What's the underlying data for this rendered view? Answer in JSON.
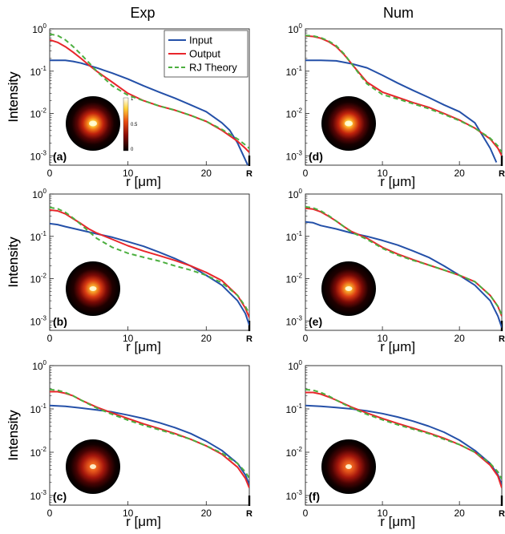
{
  "columns": [
    "Exp",
    "Num"
  ],
  "colors": {
    "Input": "#2450a8",
    "Output": "#e8262b",
    "RJ Theory": "#4caf3f"
  },
  "colorbar": {
    "ticks": [
      "1",
      "0.5",
      "0"
    ]
  },
  "chart_data": [
    {
      "type": "line",
      "label": "(a)",
      "column": "Exp",
      "xlabel": "r [μm]",
      "ylabel": "Intensity",
      "x_ticks": [
        "0",
        "10",
        "20",
        "R"
      ],
      "y_ticks": [
        "10^0",
        "10^-1",
        "10^-2",
        "10^-3"
      ],
      "xlim": [
        0,
        25.5
      ],
      "ylim": [
        0.0006,
        1
      ],
      "y_scale": "log",
      "legend": {
        "placement": "top-right",
        "entries": [
          "Input",
          "Output",
          "RJ Theory"
        ]
      },
      "inset": {
        "image": "near-field intensity profile",
        "colorbar": true
      },
      "series": [
        {
          "name": "Input",
          "style": "solid",
          "x": [
            0,
            2,
            3,
            4,
            6,
            8,
            10,
            12,
            14,
            16,
            18,
            20,
            22,
            23,
            24,
            25,
            25.5
          ],
          "y": [
            0.18,
            0.18,
            0.17,
            0.155,
            0.12,
            0.09,
            0.065,
            0.045,
            0.032,
            0.023,
            0.016,
            0.011,
            0.006,
            0.004,
            0.002,
            0.0008,
            0.0005
          ]
        },
        {
          "name": "Output",
          "style": "solid",
          "x": [
            0,
            1,
            2,
            3,
            4,
            5,
            6,
            8,
            10,
            12,
            14,
            16,
            18,
            20,
            22,
            24,
            25,
            25.5
          ],
          "y": [
            0.55,
            0.48,
            0.38,
            0.28,
            0.2,
            0.14,
            0.1,
            0.055,
            0.03,
            0.02,
            0.015,
            0.012,
            0.009,
            0.0065,
            0.004,
            0.0022,
            0.0015,
            0.0012
          ]
        },
        {
          "name": "RJ Theory",
          "style": "dashed",
          "x": [
            0,
            1,
            2,
            3,
            4,
            5,
            6,
            8,
            10,
            12,
            14,
            16,
            18,
            20,
            22,
            24,
            25,
            25.5
          ],
          "y": [
            0.75,
            0.7,
            0.55,
            0.38,
            0.25,
            0.16,
            0.1,
            0.045,
            0.027,
            0.02,
            0.015,
            0.012,
            0.009,
            0.0065,
            0.0042,
            0.0025,
            0.0018,
            0.0015
          ]
        }
      ]
    },
    {
      "type": "line",
      "label": "(d)",
      "column": "Num",
      "xlabel": "r [μm]",
      "ylabel": "Intensity",
      "x_ticks": [
        "0",
        "10",
        "20",
        "R"
      ],
      "y_ticks": [
        "10^0",
        "10^-1",
        "10^-2",
        "10^-3"
      ],
      "xlim": [
        0,
        25.5
      ],
      "ylim": [
        0.0006,
        1
      ],
      "y_scale": "log",
      "inset": {
        "image": "near-field intensity profile",
        "colorbar": false
      },
      "series": [
        {
          "name": "Input",
          "style": "solid",
          "x": [
            0,
            2,
            4,
            6,
            8,
            10,
            12,
            14,
            16,
            18,
            20,
            22,
            23,
            24,
            24.8
          ],
          "y": [
            0.18,
            0.18,
            0.175,
            0.15,
            0.12,
            0.08,
            0.052,
            0.035,
            0.024,
            0.016,
            0.011,
            0.006,
            0.003,
            0.0015,
            0.0007
          ]
        },
        {
          "name": "Output",
          "style": "solid",
          "x": [
            0,
            1,
            2,
            3,
            4,
            5,
            6,
            7,
            8,
            10,
            12,
            14,
            16,
            18,
            20,
            22,
            24,
            25,
            25.5
          ],
          "y": [
            0.68,
            0.66,
            0.6,
            0.5,
            0.38,
            0.25,
            0.15,
            0.09,
            0.055,
            0.032,
            0.024,
            0.018,
            0.014,
            0.01,
            0.007,
            0.0045,
            0.0025,
            0.0015,
            0.001
          ]
        },
        {
          "name": "RJ Theory",
          "style": "dashed",
          "x": [
            0,
            1,
            2,
            3,
            4,
            5,
            6,
            7,
            8,
            10,
            12,
            14,
            16,
            18,
            20,
            22,
            24,
            25,
            25.5
          ],
          "y": [
            0.7,
            0.68,
            0.62,
            0.52,
            0.4,
            0.26,
            0.15,
            0.085,
            0.05,
            0.028,
            0.022,
            0.017,
            0.013,
            0.0095,
            0.0068,
            0.0045,
            0.0026,
            0.0017,
            0.0012
          ]
        }
      ]
    },
    {
      "type": "line",
      "label": "(b)",
      "column": "Exp",
      "xlabel": "r [μm]",
      "ylabel": "Intensity",
      "x_ticks": [
        "0",
        "10",
        "20",
        "R"
      ],
      "y_ticks": [
        "10^0",
        "10^-1",
        "10^-2",
        "10^-3"
      ],
      "xlim": [
        0,
        25.5
      ],
      "ylim": [
        0.0006,
        1
      ],
      "y_scale": "log",
      "inset": {
        "image": "near-field intensity profile",
        "colorbar": false
      },
      "series": [
        {
          "name": "Input",
          "style": "solid",
          "x": [
            0,
            1,
            2,
            4,
            6,
            8,
            10,
            12,
            14,
            16,
            18,
            20,
            22,
            24,
            25,
            25.5
          ],
          "y": [
            0.2,
            0.19,
            0.17,
            0.14,
            0.115,
            0.095,
            0.075,
            0.058,
            0.042,
            0.03,
            0.02,
            0.012,
            0.007,
            0.003,
            0.0015,
            0.0008
          ]
        },
        {
          "name": "Output",
          "style": "solid",
          "x": [
            0,
            1,
            2,
            3,
            4,
            5,
            6,
            8,
            10,
            12,
            14,
            16,
            18,
            20,
            22,
            24,
            25,
            25.5
          ],
          "y": [
            0.42,
            0.4,
            0.34,
            0.26,
            0.2,
            0.15,
            0.12,
            0.085,
            0.06,
            0.045,
            0.035,
            0.027,
            0.02,
            0.014,
            0.009,
            0.004,
            0.002,
            0.0012
          ]
        },
        {
          "name": "RJ Theory",
          "style": "dashed",
          "x": [
            0,
            1,
            2,
            3,
            4,
            5,
            6,
            8,
            10,
            12,
            14,
            16,
            18,
            20,
            22,
            24,
            25,
            25.5
          ],
          "y": [
            0.48,
            0.45,
            0.37,
            0.27,
            0.19,
            0.13,
            0.09,
            0.055,
            0.04,
            0.032,
            0.026,
            0.02,
            0.016,
            0.012,
            0.008,
            0.004,
            0.0022,
            0.0015
          ]
        }
      ]
    },
    {
      "type": "line",
      "label": "(e)",
      "column": "Num",
      "xlabel": "r [μm]",
      "ylabel": "Intensity",
      "x_ticks": [
        "0",
        "10",
        "20",
        "R"
      ],
      "y_ticks": [
        "10^0",
        "10^-1",
        "10^-2",
        "10^-3"
      ],
      "xlim": [
        0,
        25.5
      ],
      "ylim": [
        0.0006,
        1
      ],
      "y_scale": "log",
      "inset": {
        "image": "near-field intensity profile",
        "colorbar": false
      },
      "series": [
        {
          "name": "Input",
          "style": "solid",
          "x": [
            0,
            1,
            2,
            4,
            6,
            8,
            10,
            12,
            14,
            16,
            18,
            20,
            22,
            24,
            25,
            25.5
          ],
          "y": [
            0.22,
            0.21,
            0.18,
            0.15,
            0.12,
            0.1,
            0.08,
            0.062,
            0.045,
            0.032,
            0.02,
            0.012,
            0.007,
            0.003,
            0.0013,
            0.0007
          ]
        },
        {
          "name": "Output",
          "style": "solid",
          "x": [
            0,
            1,
            2,
            3,
            4,
            5,
            6,
            8,
            10,
            12,
            14,
            16,
            18,
            20,
            22,
            24,
            25,
            25.5
          ],
          "y": [
            0.46,
            0.44,
            0.38,
            0.3,
            0.23,
            0.17,
            0.13,
            0.09,
            0.055,
            0.038,
            0.028,
            0.021,
            0.016,
            0.012,
            0.0085,
            0.004,
            0.0022,
            0.0013
          ]
        },
        {
          "name": "RJ Theory",
          "style": "dashed",
          "x": [
            0,
            1,
            2,
            3,
            4,
            5,
            6,
            8,
            10,
            12,
            14,
            16,
            18,
            20,
            22,
            24,
            25,
            25.5
          ],
          "y": [
            0.5,
            0.47,
            0.4,
            0.31,
            0.23,
            0.17,
            0.125,
            0.085,
            0.052,
            0.036,
            0.027,
            0.021,
            0.016,
            0.012,
            0.0085,
            0.004,
            0.0022,
            0.0014
          ]
        }
      ]
    },
    {
      "type": "line",
      "label": "(c)",
      "column": "Exp",
      "xlabel": "r [μm]",
      "ylabel": "Intensity",
      "x_ticks": [
        "0",
        "10",
        "20",
        "R"
      ],
      "y_ticks": [
        "10^0",
        "10^-1",
        "10^-2",
        "10^-3"
      ],
      "xlim": [
        0,
        25.5
      ],
      "ylim": [
        0.0006,
        1
      ],
      "y_scale": "log",
      "inset": {
        "image": "near-field intensity profile",
        "colorbar": false
      },
      "series": [
        {
          "name": "Input",
          "style": "solid",
          "x": [
            0,
            2,
            4,
            6,
            8,
            10,
            12,
            14,
            16,
            18,
            20,
            22,
            24,
            25,
            25.5
          ],
          "y": [
            0.12,
            0.115,
            0.105,
            0.095,
            0.085,
            0.072,
            0.06,
            0.048,
            0.037,
            0.027,
            0.018,
            0.011,
            0.0055,
            0.003,
            0.0018
          ]
        },
        {
          "name": "Output",
          "style": "solid",
          "x": [
            0,
            1,
            2,
            3,
            4,
            6,
            8,
            10,
            12,
            14,
            16,
            18,
            20,
            22,
            24,
            25,
            25.5
          ],
          "y": [
            0.25,
            0.25,
            0.23,
            0.2,
            0.16,
            0.11,
            0.08,
            0.06,
            0.045,
            0.035,
            0.027,
            0.02,
            0.014,
            0.009,
            0.0045,
            0.0025,
            0.0015
          ]
        },
        {
          "name": "RJ Theory",
          "style": "dashed",
          "x": [
            0,
            1,
            2,
            3,
            4,
            6,
            8,
            10,
            12,
            14,
            16,
            18,
            20,
            22,
            24,
            25,
            25.5
          ],
          "y": [
            0.28,
            0.27,
            0.24,
            0.2,
            0.16,
            0.105,
            0.075,
            0.055,
            0.042,
            0.033,
            0.026,
            0.02,
            0.014,
            0.0095,
            0.0055,
            0.0035,
            0.0025
          ]
        }
      ]
    },
    {
      "type": "line",
      "label": "(f)",
      "column": "Num",
      "xlabel": "r [μm]",
      "ylabel": "Intensity",
      "x_ticks": [
        "0",
        "10",
        "20",
        "R"
      ],
      "y_ticks": [
        "10^0",
        "10^-1",
        "10^-2",
        "10^-3"
      ],
      "xlim": [
        0,
        25.5
      ],
      "ylim": [
        0.0006,
        1
      ],
      "y_scale": "log",
      "inset": {
        "image": "near-field intensity profile",
        "colorbar": false
      },
      "series": [
        {
          "name": "Input",
          "style": "solid",
          "x": [
            0,
            2,
            4,
            6,
            8,
            10,
            12,
            14,
            16,
            18,
            20,
            22,
            24,
            25,
            25.5
          ],
          "y": [
            0.12,
            0.115,
            0.108,
            0.1,
            0.09,
            0.078,
            0.065,
            0.052,
            0.04,
            0.029,
            0.019,
            0.011,
            0.0055,
            0.003,
            0.0018
          ]
        },
        {
          "name": "Output",
          "style": "solid",
          "x": [
            0,
            1,
            2,
            3,
            4,
            6,
            8,
            10,
            12,
            14,
            16,
            18,
            20,
            22,
            24,
            25,
            25.5
          ],
          "y": [
            0.24,
            0.24,
            0.22,
            0.19,
            0.16,
            0.11,
            0.08,
            0.06,
            0.046,
            0.036,
            0.028,
            0.021,
            0.015,
            0.01,
            0.005,
            0.0028,
            0.0015
          ]
        },
        {
          "name": "RJ Theory",
          "style": "dashed",
          "x": [
            0,
            1,
            2,
            3,
            4,
            6,
            8,
            10,
            12,
            14,
            16,
            18,
            20,
            22,
            24,
            25,
            25.5
          ],
          "y": [
            0.28,
            0.27,
            0.24,
            0.2,
            0.16,
            0.105,
            0.075,
            0.056,
            0.043,
            0.034,
            0.027,
            0.02,
            0.015,
            0.01,
            0.0055,
            0.0035,
            0.0024
          ]
        }
      ]
    }
  ]
}
